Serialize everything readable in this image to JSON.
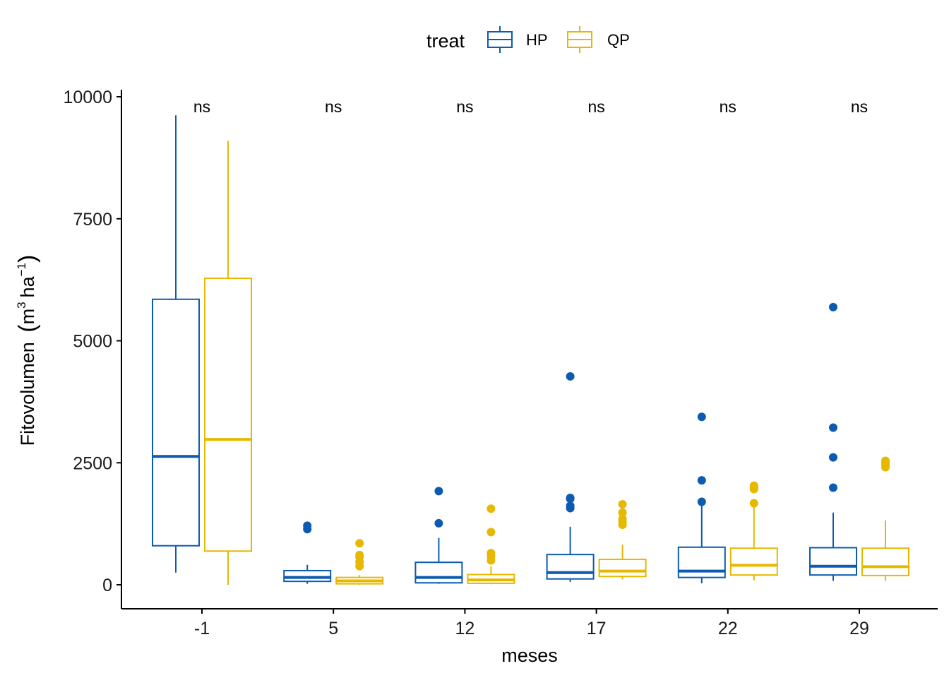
{
  "chart_data": {
    "type": "boxplot",
    "xlabel": "meses",
    "ylabel_main": "Fitovolumen",
    "ylabel_unit_m": "m",
    "ylabel_unit_m_sup": "3",
    "ylabel_unit_ha": "ha",
    "ylabel_unit_ha_sup": "−1",
    "ylim": [
      -490,
      10100
    ],
    "yticks": [
      0,
      2500,
      5000,
      7500,
      10000
    ],
    "ytick_labels": [
      "0",
      "2500",
      "5000",
      "7500",
      "10000"
    ],
    "categories": [
      "-1",
      "5",
      "12",
      "17",
      "22",
      "29"
    ],
    "significance": [
      "ns",
      "ns",
      "ns",
      "ns",
      "ns",
      "ns"
    ],
    "legend": {
      "title": "treat",
      "position": "top",
      "entries": [
        "HP",
        "QP"
      ]
    },
    "grid": false,
    "series": [
      {
        "name": "HP",
        "color": "#0C5BB0",
        "boxes": [
          {
            "min": 250,
            "q1": 800,
            "median": 2630,
            "q3": 5850,
            "max": 9620,
            "outliers": []
          },
          {
            "min": 20,
            "q1": 70,
            "median": 150,
            "q3": 290,
            "max": 410,
            "outliers": [
              1140,
              1210
            ]
          },
          {
            "min": 20,
            "q1": 40,
            "median": 150,
            "q3": 460,
            "max": 960,
            "outliers": [
              1260,
              1920
            ]
          },
          {
            "min": 60,
            "q1": 120,
            "median": 250,
            "q3": 620,
            "max": 1190,
            "outliers": [
              1570,
              1620,
              1760,
              1780,
              4270
            ]
          },
          {
            "min": 30,
            "q1": 150,
            "median": 280,
            "q3": 770,
            "max": 1660,
            "outliers": [
              1700,
              2140,
              3440
            ]
          },
          {
            "min": 80,
            "q1": 200,
            "median": 380,
            "q3": 760,
            "max": 1480,
            "outliers": [
              1990,
              2610,
              3220,
              5690
            ]
          }
        ]
      },
      {
        "name": "QP",
        "color": "#E7B800",
        "boxes": [
          {
            "min": 0,
            "q1": 690,
            "median": 2980,
            "q3": 6280,
            "max": 9100,
            "outliers": []
          },
          {
            "min": 0,
            "q1": 20,
            "median": 80,
            "q3": 150,
            "max": 200,
            "outliers": [
              380,
              470,
              570,
              610,
              850
            ]
          },
          {
            "min": 10,
            "q1": 30,
            "median": 100,
            "q3": 210,
            "max": 380,
            "outliers": [
              500,
              580,
              650,
              1080,
              1560
            ]
          },
          {
            "min": 110,
            "q1": 170,
            "median": 280,
            "q3": 520,
            "max": 820,
            "outliers": [
              1230,
              1290,
              1350,
              1480,
              1650
            ]
          },
          {
            "min": 90,
            "q1": 200,
            "median": 400,
            "q3": 750,
            "max": 1610,
            "outliers": [
              1670,
              1960,
              2000,
              2030
            ]
          },
          {
            "min": 80,
            "q1": 190,
            "median": 370,
            "q3": 750,
            "max": 1320,
            "outliers": [
              2410,
              2460,
              2510,
              2540
            ]
          }
        ]
      }
    ]
  }
}
